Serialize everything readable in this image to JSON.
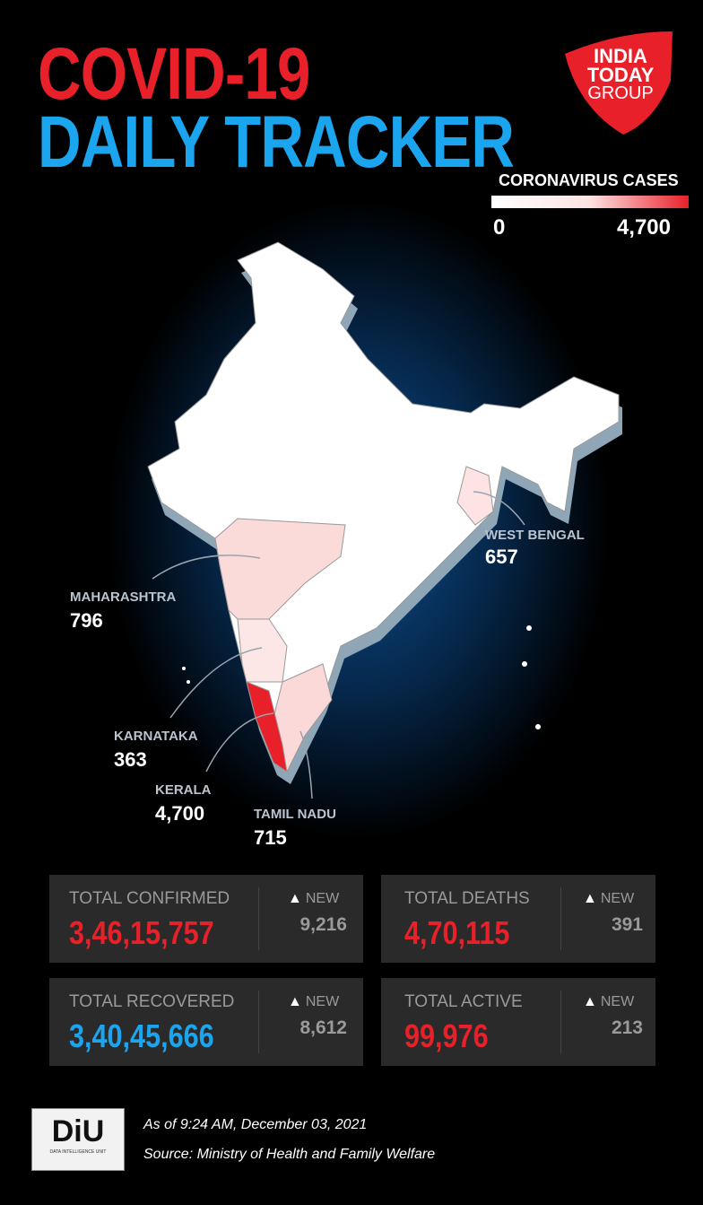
{
  "header": {
    "title_line1": "COVID-19",
    "title_line2": "DAILY TRACKER",
    "logo": [
      "INDIA",
      "TODAY",
      "GROUP"
    ]
  },
  "legend": {
    "title": "CORONAVIRUS CASES",
    "min": "0",
    "max": "4,700"
  },
  "map_labels": [
    {
      "name": "WEST BENGAL",
      "value": "657"
    },
    {
      "name": "MAHARASHTRA",
      "value": "796"
    },
    {
      "name": "KARNATAKA",
      "value": "363"
    },
    {
      "name": "KERALA",
      "value": "4,700"
    },
    {
      "name": "TAMIL NADU",
      "value": "715"
    }
  ],
  "stats": [
    {
      "label": "TOTAL CONFIRMED",
      "value": "3,46,15,757",
      "new_label": "NEW",
      "new_value": "9,216"
    },
    {
      "label": "TOTAL DEATHS",
      "value": "4,70,115",
      "new_label": "NEW",
      "new_value": "391"
    },
    {
      "label": "TOTAL RECOVERED",
      "value": "3,40,45,666",
      "new_label": "NEW",
      "new_value": "8,612"
    },
    {
      "label": "TOTAL ACTIVE",
      "value": "99,976",
      "new_label": "NEW",
      "new_value": "213"
    }
  ],
  "footer": {
    "logo": "DiU",
    "logo_sub": "DATA INTELLIGENCE UNIT",
    "date": "As of 9:24 AM, December 03, 2021",
    "source": "Source: Ministry of Health and Family Welfare"
  }
}
